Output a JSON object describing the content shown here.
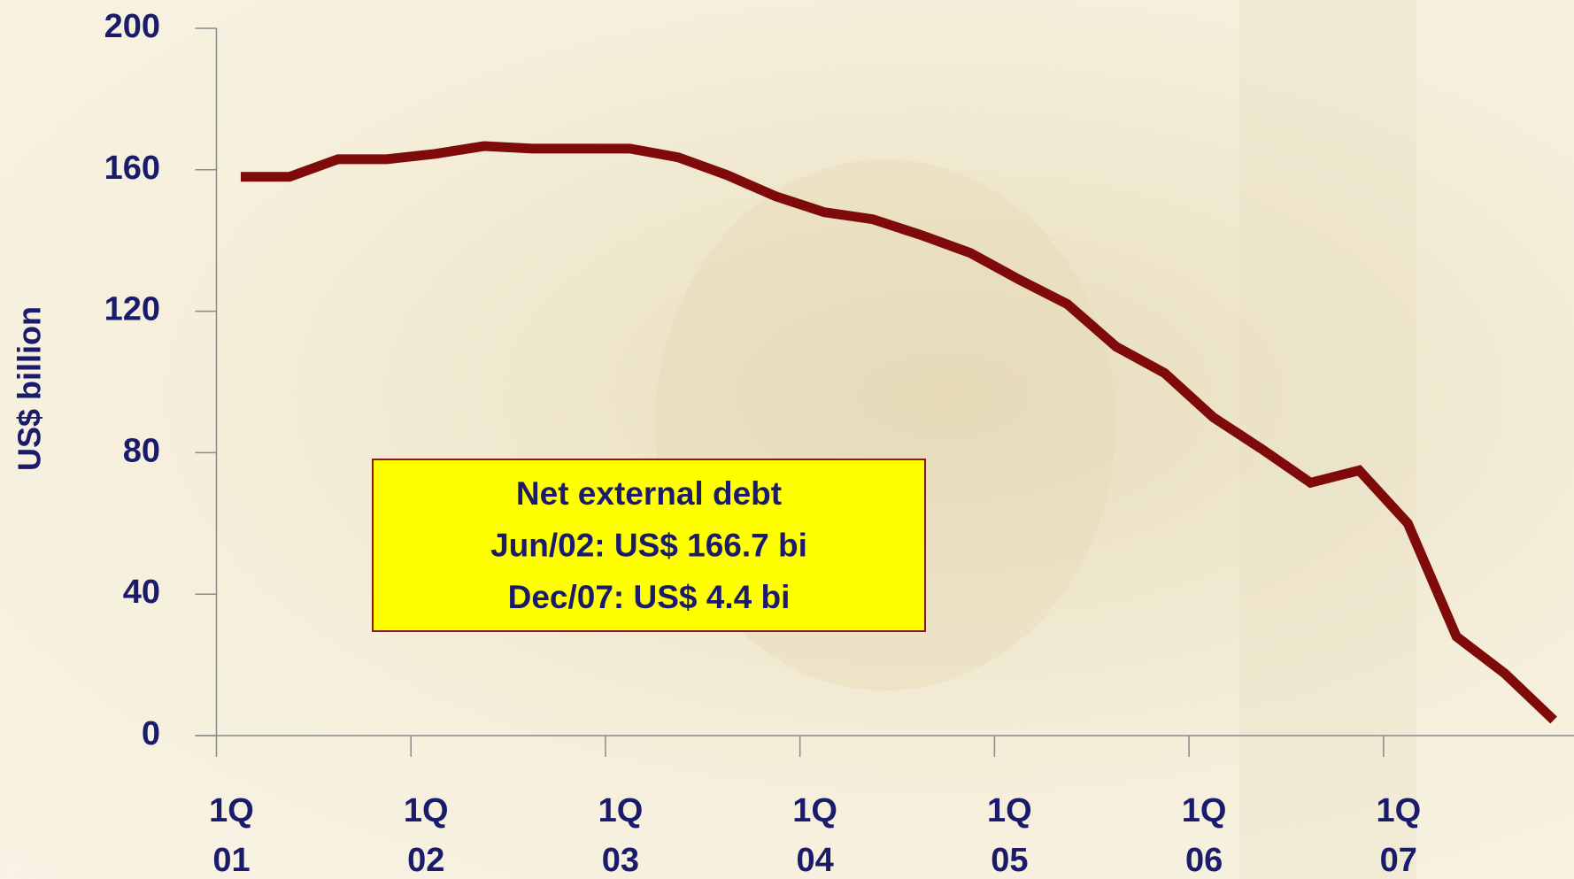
{
  "chart_data": {
    "type": "line",
    "y_label": "US$ billion",
    "categories": [
      "1Q 01",
      null,
      null,
      null,
      "1Q 02",
      null,
      null,
      null,
      "1Q 03",
      null,
      null,
      null,
      "1Q 04",
      null,
      null,
      null,
      "1Q 05",
      null,
      null,
      null,
      "1Q 06",
      null,
      null,
      null,
      "1Q 07",
      null,
      null,
      null
    ],
    "series": [
      {
        "name": "Net external debt",
        "color": "#7f0a0a",
        "values": [
          158,
          158,
          163,
          163,
          164.5,
          166.7,
          166,
          166,
          166,
          163.5,
          158.5,
          152.5,
          148,
          146,
          141.5,
          136.5,
          129,
          122,
          110,
          102.5,
          90,
          81,
          71.5,
          75,
          60,
          28,
          17.5,
          4.4
        ]
      }
    ],
    "ylim": [
      0,
      200
    ],
    "yticks": [
      0,
      40,
      80,
      120,
      160,
      200
    ],
    "annotation": [
      "Net external debt",
      "Jun/02: US$ 166.7 bi",
      "Dec/07: US$ 4.4 bi"
    ]
  }
}
